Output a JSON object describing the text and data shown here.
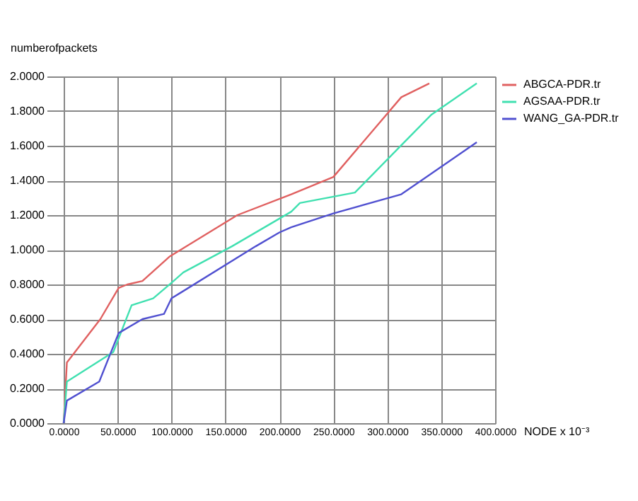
{
  "chart_data": {
    "type": "line",
    "xlabel": "NODE x 10⁻³",
    "ylabel": "numberofpackets",
    "xlim": [
      0,
      400
    ],
    "ylim": [
      0,
      2
    ],
    "xticks": [
      {
        "value": 0,
        "label": "0.0000"
      },
      {
        "value": 50,
        "label": "50.0000"
      },
      {
        "value": 100,
        "label": "100.0000"
      },
      {
        "value": 150,
        "label": "150.0000"
      },
      {
        "value": 200,
        "label": "200.0000"
      },
      {
        "value": 250,
        "label": "250.0000"
      },
      {
        "value": 300,
        "label": "300.0000"
      },
      {
        "value": 350,
        "label": "350.0000"
      },
      {
        "value": 400,
        "label": "400.0000"
      }
    ],
    "yticks": [
      {
        "value": 0,
        "label": "0.0000"
      },
      {
        "value": 0.2,
        "label": "0.2000"
      },
      {
        "value": 0.4,
        "label": "0.4000"
      },
      {
        "value": 0.6,
        "label": "0.6000"
      },
      {
        "value": 0.8,
        "label": "0.8000"
      },
      {
        "value": 1.0,
        "label": "1.0000"
      },
      {
        "value": 1.2,
        "label": "1.2000"
      },
      {
        "value": 1.4,
        "label": "1.4000"
      },
      {
        "value": 1.6,
        "label": "1.6000"
      },
      {
        "value": 1.8,
        "label": "1.8000"
      },
      {
        "value": 2.0,
        "label": "2.0000"
      }
    ],
    "grid": true,
    "legend": "top right",
    "marker": "none",
    "line_style": "solid",
    "series": [
      {
        "name": "ABGCA-PDR.tr",
        "color": "#e06060",
        "x": [
          0,
          3,
          34,
          51,
          59,
          73,
          98,
          161,
          211,
          250,
          313,
          339
        ],
        "values": [
          0,
          0.35,
          0.6,
          0.78,
          0.8,
          0.82,
          0.96,
          1.2,
          1.32,
          1.42,
          1.88,
          1.96
        ]
      },
      {
        "name": "AGSAA-PDR.tr",
        "color": "#40e0b0",
        "x": [
          0,
          3,
          46,
          63,
          83,
          100,
          111,
          156,
          211,
          219,
          270,
          311,
          341,
          383
        ],
        "values": [
          0,
          0.24,
          0.41,
          0.68,
          0.72,
          0.81,
          0.87,
          1.02,
          1.22,
          1.27,
          1.33,
          1.59,
          1.78,
          1.96
        ]
      },
      {
        "name": "WANG_GA-PDR.tr",
        "color": "#5050d0",
        "x": [
          0,
          3,
          33,
          51,
          73,
          93,
          100,
          178,
          200,
          211,
          250,
          313,
          383
        ],
        "values": [
          0,
          0.13,
          0.24,
          0.52,
          0.6,
          0.63,
          0.72,
          1.02,
          1.1,
          1.13,
          1.21,
          1.32,
          1.62
        ]
      }
    ]
  }
}
